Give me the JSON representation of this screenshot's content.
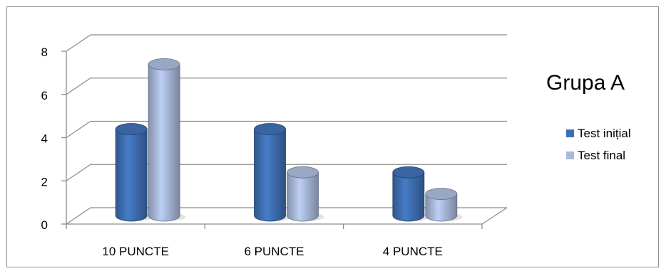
{
  "chart_data": {
    "type": "bar",
    "title": "Grupa A",
    "categories": [
      "10 PUNCTE",
      "6 PUNCTE",
      "4 PUNCTE"
    ],
    "series": [
      {
        "name": "Test inițial",
        "values": [
          4,
          4,
          2
        ],
        "color": "#3f6fb3"
      },
      {
        "name": "Test final",
        "values": [
          7,
          2,
          1
        ],
        "color": "#a9b9da"
      }
    ],
    "ylim": [
      0,
      8
    ],
    "yticks": [
      0,
      2,
      4,
      6,
      8
    ],
    "grid": true,
    "legend": "right",
    "style": "3d-cylinder"
  }
}
